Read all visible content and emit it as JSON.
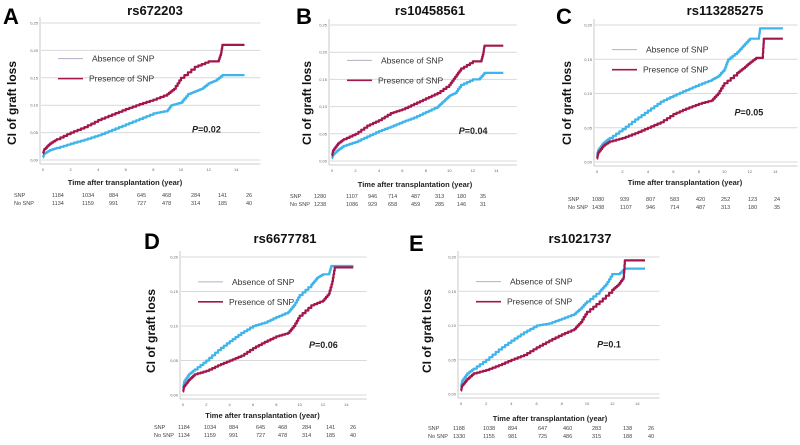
{
  "colors": {
    "absence": "#3db4ec",
    "presence": "#a3164c",
    "grid": "#d9d9d9"
  },
  "chart_data": [
    {
      "id": "A",
      "type": "line",
      "panel_label": "A",
      "title": "rs672203",
      "xlabel": "Time after transplantation (year)",
      "ylabel": "CI of graft loss",
      "xlim": [
        0,
        15
      ],
      "ylim": [
        0,
        0.25
      ],
      "xticks": [
        "0",
        "2",
        "4",
        "6",
        "8",
        "10",
        "12",
        "14"
      ],
      "yticks": [
        "0,00",
        "0,05",
        "0,10",
        "0,15",
        "0,20",
        "0,25"
      ],
      "ytick_values": [
        0,
        0.05,
        0.1,
        0.15,
        0.2,
        0.25
      ],
      "p_value_label": "P",
      "p_value": "=0.02",
      "legend": [
        "Absence of SNP",
        "Presence of SNP"
      ],
      "legend_position": "upper-left",
      "series": [
        {
          "name": "Absence of SNP",
          "color_key": "absence",
          "x": [
            0,
            0.1,
            0.5,
            1,
            2,
            3,
            4,
            5,
            6,
            7,
            8,
            9,
            9.3,
            10,
            10.5,
            11,
            11.5,
            12,
            12.5,
            13,
            14.6
          ],
          "y": [
            0.005,
            0.012,
            0.018,
            0.022,
            0.03,
            0.037,
            0.045,
            0.055,
            0.065,
            0.075,
            0.085,
            0.09,
            0.1,
            0.105,
            0.12,
            0.125,
            0.13,
            0.14,
            0.145,
            0.155,
            0.155
          ]
        },
        {
          "name": "Presence of SNP",
          "color_key": "presence",
          "x": [
            0,
            0.1,
            0.5,
            1,
            2,
            3,
            4,
            5,
            6,
            7,
            8,
            9,
            9.5,
            10,
            11,
            12,
            12.7,
            12.9,
            13,
            14.6
          ],
          "y": [
            0.012,
            0.02,
            0.03,
            0.038,
            0.05,
            0.06,
            0.073,
            0.083,
            0.093,
            0.102,
            0.11,
            0.12,
            0.13,
            0.15,
            0.17,
            0.18,
            0.18,
            0.195,
            0.21,
            0.21
          ]
        }
      ],
      "risk_table": {
        "rows": [
          {
            "label": "SNP",
            "values": [
              "1184",
              "1034",
              "884",
              "645",
              "468",
              "284",
              "141",
              "26"
            ]
          },
          {
            "label": "No SNP",
            "values": [
              "1134",
              "1159",
              "991",
              "727",
              "478",
              "314",
              "185",
              "40"
            ]
          }
        ]
      }
    },
    {
      "id": "B",
      "type": "line",
      "panel_label": "B",
      "title": "rs10458561",
      "xlabel": "Time after transplantation (year)",
      "ylabel": "CI of graft loss",
      "xlim": [
        0,
        15
      ],
      "ylim": [
        0,
        0.25
      ],
      "xticks": [
        "0",
        "2",
        "4",
        "6",
        "8",
        "10",
        "12",
        "14"
      ],
      "yticks": [
        "0,00",
        "0,05",
        "0,10",
        "0,15",
        "0,20",
        "0,25"
      ],
      "ytick_values": [
        0,
        0.05,
        0.1,
        0.15,
        0.2,
        0.25
      ],
      "p_value_label": "P",
      "p_value": "=0.04",
      "legend": [
        "Absence of SNP",
        "Presence of SNP"
      ],
      "legend_position": "upper-left",
      "series": [
        {
          "name": "Absence of SNP",
          "color_key": "absence",
          "x": [
            0,
            0.1,
            0.5,
            1,
            2,
            3,
            4,
            5,
            6,
            7,
            8,
            9,
            9.5,
            10,
            10.5,
            11,
            12,
            12.5,
            13,
            14.6
          ],
          "y": [
            0.005,
            0.012,
            0.02,
            0.028,
            0.035,
            0.045,
            0.055,
            0.063,
            0.072,
            0.08,
            0.09,
            0.1,
            0.11,
            0.12,
            0.125,
            0.14,
            0.15,
            0.15,
            0.162,
            0.162
          ]
        },
        {
          "name": "Presence of SNP",
          "color_key": "presence",
          "x": [
            0,
            0.1,
            0.5,
            1,
            2,
            3,
            4,
            5,
            6,
            7,
            8,
            9,
            10,
            10.5,
            11,
            12,
            12.7,
            12.9,
            13,
            14.6
          ],
          "y": [
            0.01,
            0.02,
            0.032,
            0.04,
            0.05,
            0.065,
            0.075,
            0.088,
            0.095,
            0.105,
            0.115,
            0.125,
            0.14,
            0.155,
            0.17,
            0.183,
            0.183,
            0.2,
            0.212,
            0.212
          ]
        }
      ],
      "risk_table": {
        "rows": [
          {
            "label": "SNP",
            "values": [
              "1280",
              "1107",
              "946",
              "714",
              "487",
              "313",
              "180",
              "35"
            ]
          },
          {
            "label": "No SNP",
            "values": [
              "1238",
              "1086",
              "929",
              "658",
              "459",
              "285",
              "146",
              "31"
            ]
          }
        ]
      }
    },
    {
      "id": "C",
      "type": "line",
      "panel_label": "C",
      "title": "rs113285275",
      "xlabel": "Time after transplantation (year)",
      "ylabel": "CI of graft loss",
      "xlim": [
        0,
        15
      ],
      "ylim": [
        0,
        0.2
      ],
      "xticks": [
        "0",
        "2",
        "4",
        "6",
        "8",
        "10",
        "12",
        "14"
      ],
      "yticks": [
        "0,00",
        "0,05",
        "0,10",
        "0,15",
        "0,20"
      ],
      "ytick_values": [
        0,
        0.05,
        0.1,
        0.15,
        0.2
      ],
      "p_value_label": "P",
      "p_value": "=0.05",
      "legend": [
        "Absence of SNP",
        "Presence of SNP"
      ],
      "legend_position": "upper-left",
      "series": [
        {
          "name": "Absence of SNP",
          "color_key": "absence",
          "x": [
            0,
            0.1,
            0.5,
            1,
            2,
            3,
            4,
            5,
            6,
            7,
            8,
            9,
            9.5,
            10,
            10.3,
            11,
            11.5,
            12,
            12.7,
            12.8,
            14.6
          ],
          "y": [
            0.01,
            0.018,
            0.028,
            0.035,
            0.048,
            0.062,
            0.075,
            0.088,
            0.097,
            0.105,
            0.113,
            0.12,
            0.125,
            0.135,
            0.15,
            0.16,
            0.17,
            0.18,
            0.18,
            0.195,
            0.195
          ]
        },
        {
          "name": "Presence of SNP",
          "color_key": "presence",
          "x": [
            0,
            0.1,
            0.5,
            1,
            2,
            3,
            4,
            5,
            6,
            7,
            8,
            9,
            9.5,
            10,
            11,
            11.5,
            12,
            12.5,
            13,
            13.1,
            14.6
          ],
          "y": [
            0.005,
            0.014,
            0.024,
            0.03,
            0.035,
            0.042,
            0.05,
            0.058,
            0.07,
            0.078,
            0.085,
            0.09,
            0.1,
            0.115,
            0.13,
            0.137,
            0.145,
            0.152,
            0.152,
            0.18,
            0.18
          ]
        }
      ],
      "risk_table": {
        "rows": [
          {
            "label": "SNP",
            "values": [
              "1080",
              "939",
              "807",
              "583",
              "420",
              "252",
              "123",
              "24"
            ]
          },
          {
            "label": "No SNP",
            "values": [
              "1438",
              "1107",
              "946",
              "714",
              "487",
              "313",
              "180",
              "35"
            ]
          }
        ]
      }
    },
    {
      "id": "D",
      "type": "line",
      "panel_label": "D",
      "title": "rs6677781",
      "xlabel": "Time after transplantation (year)",
      "ylabel": "CI of graft loss",
      "xlim": [
        0,
        15
      ],
      "ylim": [
        0,
        0.2
      ],
      "xticks": [
        "0",
        "2",
        "4",
        "6",
        "8",
        "10",
        "12",
        "14"
      ],
      "yticks": [
        "0,00",
        "0,05",
        "0,10",
        "0,15",
        "0,20"
      ],
      "ytick_values": [
        0,
        0.05,
        0.1,
        0.15,
        0.2
      ],
      "p_value_label": "P",
      "p_value": "=0.06",
      "legend": [
        "Absence of SNP",
        "Presence of SNP"
      ],
      "legend_position": "upper-left",
      "series": [
        {
          "name": "Absence of SNP",
          "color_key": "absence",
          "x": [
            0,
            0.1,
            0.5,
            1,
            2,
            3,
            4,
            5,
            6,
            7,
            8,
            9,
            9.5,
            10,
            11,
            11.5,
            12,
            12.5,
            12.7,
            14.6
          ],
          "y": [
            0.01,
            0.02,
            0.03,
            0.037,
            0.05,
            0.065,
            0.078,
            0.09,
            0.1,
            0.105,
            0.113,
            0.12,
            0.13,
            0.145,
            0.16,
            0.17,
            0.175,
            0.175,
            0.187,
            0.187
          ]
        },
        {
          "name": "Presence of SNP",
          "color_key": "presence",
          "x": [
            0,
            0.1,
            0.5,
            1,
            2,
            3,
            4,
            5,
            6,
            7,
            8,
            9,
            9.5,
            10,
            11,
            12,
            12.5,
            12.8,
            13,
            14.6
          ],
          "y": [
            0.005,
            0.013,
            0.022,
            0.03,
            0.035,
            0.043,
            0.05,
            0.057,
            0.068,
            0.077,
            0.085,
            0.09,
            0.1,
            0.115,
            0.13,
            0.137,
            0.147,
            0.165,
            0.185,
            0.185
          ]
        }
      ],
      "risk_table": {
        "rows": [
          {
            "label": "SNP",
            "values": [
              "1184",
              "1034",
              "884",
              "645",
              "468",
              "284",
              "141",
              "26"
            ]
          },
          {
            "label": "No SNP",
            "values": [
              "1134",
              "1159",
              "991",
              "727",
              "478",
              "314",
              "185",
              "40"
            ]
          }
        ]
      }
    },
    {
      "id": "E",
      "type": "line",
      "panel_label": "E",
      "title": "rs1021737",
      "xlabel": "Time after transplantation (year)",
      "ylabel": "CI of graft loss",
      "xlim": [
        0,
        15
      ],
      "ylim": [
        0,
        0.2
      ],
      "xticks": [
        "0",
        "2",
        "4",
        "6",
        "8",
        "10",
        "12",
        "14"
      ],
      "yticks": [
        "0,00",
        "0,05",
        "0,10",
        "0,15",
        "0,20"
      ],
      "ytick_values": [
        0,
        0.05,
        0.1,
        0.15,
        0.2
      ],
      "p_value_label": "P",
      "p_value": "=0.1",
      "legend": [
        "Absence of SNP",
        "Presence of SNP"
      ],
      "legend_position": "upper-left",
      "series": [
        {
          "name": "Absence of SNP",
          "color_key": "absence",
          "x": [
            0,
            0.1,
            0.5,
            1,
            2,
            3,
            4,
            5,
            6,
            7,
            8,
            9,
            9.5,
            10,
            11,
            11.5,
            12,
            12.5,
            13,
            14.6
          ],
          "y": [
            0.01,
            0.02,
            0.03,
            0.037,
            0.05,
            0.065,
            0.078,
            0.09,
            0.1,
            0.103,
            0.11,
            0.117,
            0.125,
            0.135,
            0.15,
            0.16,
            0.175,
            0.175,
            0.183,
            0.183
          ]
        },
        {
          "name": "Presence of SNP",
          "color_key": "presence",
          "x": [
            0,
            0.1,
            0.5,
            1,
            2,
            3,
            4,
            5,
            6,
            7,
            8,
            9,
            9.5,
            10,
            11,
            12,
            12.5,
            12.9,
            13,
            14.6
          ],
          "y": [
            0.005,
            0.013,
            0.022,
            0.03,
            0.035,
            0.042,
            0.05,
            0.057,
            0.068,
            0.078,
            0.087,
            0.095,
            0.105,
            0.12,
            0.135,
            0.152,
            0.16,
            0.17,
            0.195,
            0.195
          ]
        }
      ],
      "risk_table": {
        "rows": [
          {
            "label": "SNP",
            "values": [
              "1188",
              "1038",
              "894",
              "647",
              "460",
              "283",
              "138",
              "26"
            ]
          },
          {
            "label": "No SNP",
            "values": [
              "1330",
              "1155",
              "981",
              "725",
              "486",
              "315",
              "188",
              "40"
            ]
          }
        ]
      }
    }
  ]
}
